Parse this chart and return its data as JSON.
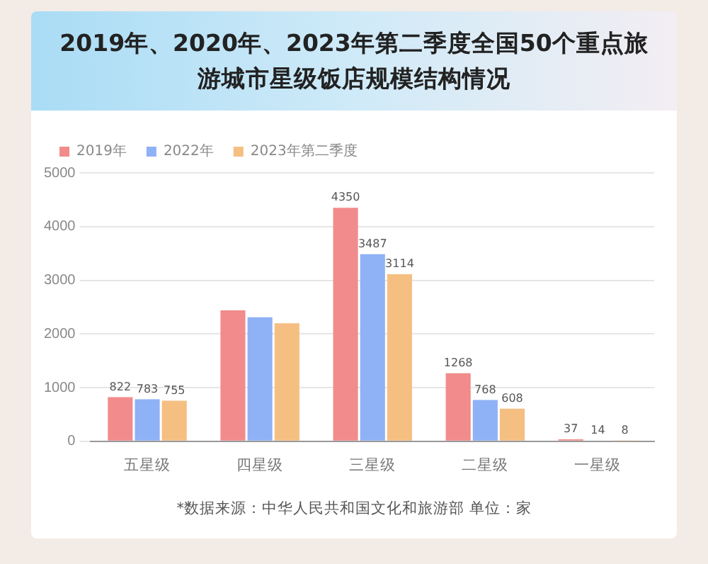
{
  "chart_data": {
    "type": "bar",
    "title": "2019年、2020年、2023年第二季度全国50个重点旅游城市星级饭店规模结构情况",
    "categories": [
      "五星级",
      "四星级",
      "三星级",
      "二星级",
      "一星级"
    ],
    "series": [
      {
        "name": "2019年",
        "color": "#f28b8b",
        "values": [
          822,
          2440,
          4350,
          1268,
          37
        ],
        "value_labels": [
          "822",
          null,
          "4350",
          "1268",
          "37"
        ]
      },
      {
        "name": "2022年",
        "color": "#8fb1f5",
        "values": [
          783,
          2310,
          3487,
          768,
          14
        ],
        "value_labels": [
          "783",
          null,
          "3487",
          "768",
          "14"
        ]
      },
      {
        "name": "2023年第二季度",
        "color": "#f5bf82",
        "values": [
          755,
          2200,
          3114,
          608,
          8
        ],
        "value_labels": [
          "755",
          null,
          "3114",
          "608",
          "8"
        ]
      }
    ],
    "ylim": [
      0,
      5000
    ],
    "yticks": [
      0,
      1000,
      2000,
      3000,
      4000,
      5000
    ],
    "grid": "y",
    "legend": "top left",
    "annotations": [
      "*数据来源：中华人民共和国文化和旅游部   单位：家"
    ]
  }
}
